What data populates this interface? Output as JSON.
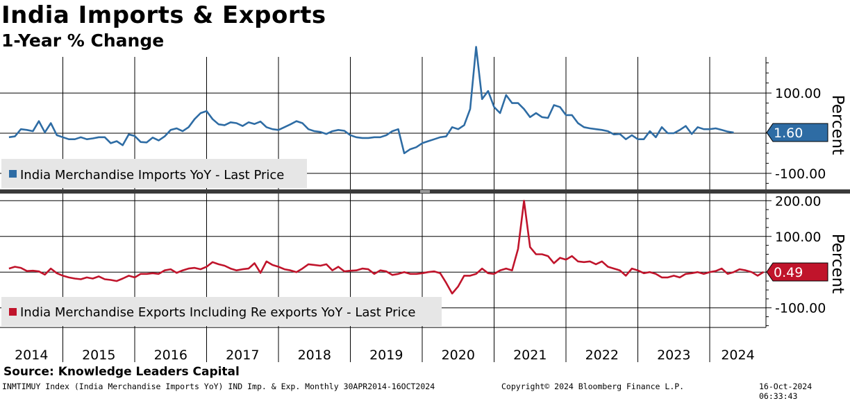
{
  "header": {
    "title": "India Imports & Exports",
    "subtitle": "1-Year % Change"
  },
  "footer": {
    "source": "Source: Knowledge Leaders Capital",
    "index_info": "INMTIMUY Index (India Merchandise Imports YoY) IND Imp. & Exp.  Monthly 30APR2014-16OCT2024",
    "copyright": "Copyright© 2024 Bloomberg Finance L.P.",
    "timestamp": "16-Oct-2024 06:33:43"
  },
  "colors": {
    "imports": "#2e6ca4",
    "exports": "#c0142b",
    "grid": "#000000"
  },
  "chart_data": [
    {
      "type": "line",
      "panel": "top",
      "ylabel": "Percent",
      "ylim": [
        -140,
        190
      ],
      "yticks": [
        100,
        -100
      ],
      "ytick_labels": [
        "100.00",
        "-100.00"
      ],
      "legend": "India Merchandise Imports YoY - Last Price",
      "last_value_label": "1.60",
      "last_value": 1.6,
      "series": [
        {
          "name": "India Merchandise Imports YoY - Last Price",
          "start": [
            2014,
            4
          ],
          "step": "month",
          "values": [
            -10,
            -8,
            10,
            8,
            5,
            30,
            2,
            25,
            -5,
            -10,
            -15,
            -15,
            -10,
            -15,
            -13,
            -10,
            -10,
            -25,
            -20,
            -30,
            -3,
            -7,
            -22,
            -23,
            -11,
            -18,
            -8,
            8,
            12,
            5,
            15,
            35,
            50,
            55,
            35,
            22,
            20,
            27,
            25,
            18,
            27,
            23,
            29,
            15,
            10,
            8,
            15,
            22,
            30,
            25,
            10,
            5,
            3,
            -2,
            5,
            8,
            6,
            -5,
            -10,
            -12,
            -12,
            -10,
            -10,
            -5,
            5,
            10,
            -50,
            -40,
            -35,
            -25,
            -20,
            -15,
            -10,
            -8,
            15,
            10,
            20,
            60,
            215,
            85,
            105,
            65,
            50,
            95,
            75,
            75,
            60,
            40,
            50,
            40,
            38,
            70,
            65,
            45,
            45,
            25,
            15,
            12,
            10,
            8,
            5,
            -3,
            -2,
            -15,
            -5,
            -15,
            -15,
            5,
            -10,
            15,
            0,
            0,
            8,
            18,
            -2,
            15,
            10,
            10,
            12,
            8,
            4,
            1.6
          ]
        }
      ],
      "x_axis": {
        "tick_labels": [
          "2014",
          "2015",
          "2016",
          "2017",
          "2018",
          "2019",
          "2020",
          "2021",
          "2022",
          "2023",
          "2024"
        ]
      }
    },
    {
      "type": "line",
      "panel": "bottom",
      "ylabel": "Percent",
      "ylim": [
        -155,
        220
      ],
      "yticks": [
        200,
        100,
        -100
      ],
      "ytick_labels": [
        "200.00",
        "100.00",
        "-100.00"
      ],
      "legend": "India Merchandise Exports Including Re exports YoY - Last Price",
      "last_value_label": "0.49",
      "last_value": 0.49,
      "series": [
        {
          "name": "India Merchandise Exports Including Re exports YoY - Last Price",
          "start": [
            2014,
            4
          ],
          "step": "month",
          "values": [
            10,
            15,
            12,
            3,
            4,
            2,
            -7,
            10,
            -3,
            -10,
            -15,
            -18,
            -20,
            -15,
            -18,
            -12,
            -20,
            -22,
            -25,
            -18,
            -10,
            -15,
            -5,
            -5,
            -3,
            -5,
            5,
            8,
            -2,
            5,
            10,
            12,
            8,
            15,
            28,
            22,
            18,
            10,
            5,
            8,
            10,
            25,
            -2,
            30,
            20,
            15,
            8,
            5,
            0,
            10,
            22,
            20,
            18,
            22,
            5,
            15,
            2,
            4,
            5,
            10,
            8,
            -5,
            5,
            2,
            -8,
            -5,
            0,
            -5,
            -5,
            -3,
            0,
            2,
            -3,
            -30,
            -60,
            -40,
            -10,
            -10,
            -5,
            10,
            -3,
            -5,
            5,
            10,
            5,
            65,
            200,
            70,
            50,
            50,
            45,
            25,
            40,
            35,
            45,
            30,
            28,
            30,
            22,
            30,
            15,
            10,
            5,
            -10,
            10,
            5,
            -3,
            0,
            -5,
            -15,
            -15,
            -10,
            -15,
            -5,
            -3,
            0,
            -5,
            0,
            3,
            10,
            -5,
            0,
            8,
            5,
            0,
            -10,
            0.49
          ]
        }
      ],
      "x_axis": {
        "tick_labels": [
          "2014",
          "2015",
          "2016",
          "2017",
          "2018",
          "2019",
          "2020",
          "2021",
          "2022",
          "2023",
          "2024"
        ]
      }
    }
  ]
}
